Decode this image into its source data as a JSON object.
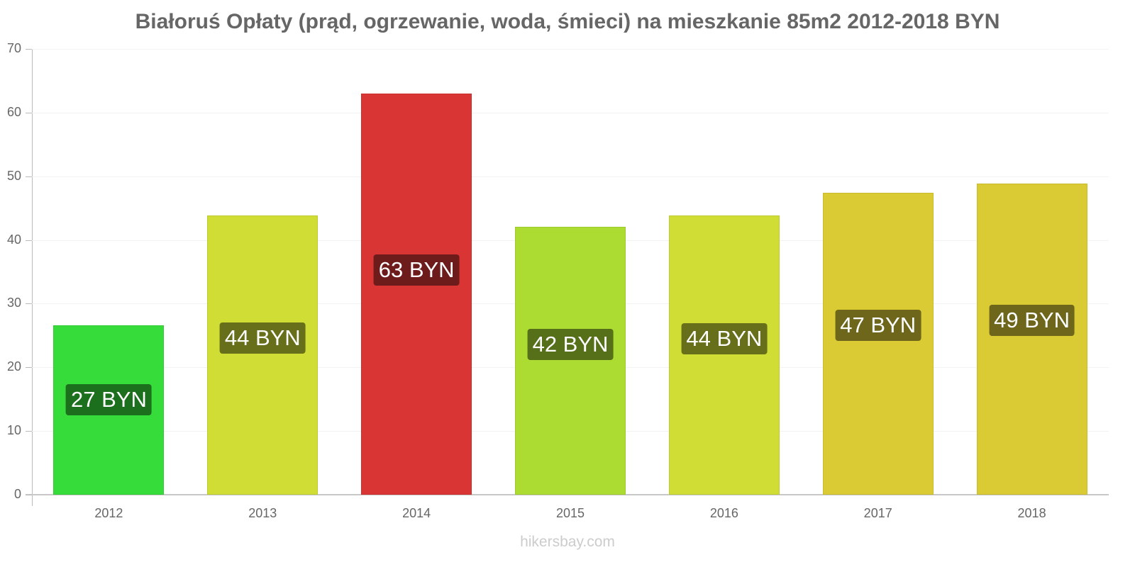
{
  "chart_data": {
    "type": "bar",
    "title": "Białoruś Opłaty (prąd, ogrzewanie, woda, śmieci) na mieszkanie 85m2 2012-2018 BYN",
    "xlabel": "",
    "ylabel": "",
    "ylim": [
      0,
      70
    ],
    "yticks": [
      0,
      10,
      20,
      30,
      40,
      50,
      60,
      70
    ],
    "grid": true,
    "legend": "none",
    "categories": [
      "2012",
      "2013",
      "2014",
      "2015",
      "2016",
      "2017",
      "2018"
    ],
    "values": [
      26.6,
      43.9,
      63.0,
      42.1,
      43.8,
      47.4,
      48.9
    ],
    "data_labels": [
      "27 BYN",
      "44 BYN",
      "63 BYN",
      "42 BYN",
      "44 BYN",
      "47 BYN",
      "49 BYN"
    ],
    "bar_colors": [
      "#35dc3a",
      "#cfdd35",
      "#da3535",
      "#acdc32",
      "#cfdd35",
      "#dacb35",
      "#dacb35"
    ],
    "label_colors": [
      "#1b6f1d",
      "#686f1a",
      "#6d1b1b",
      "#566f19",
      "#686f1a",
      "#6d661b",
      "#6d661b"
    ]
  },
  "watermark": "hikersbay.com"
}
